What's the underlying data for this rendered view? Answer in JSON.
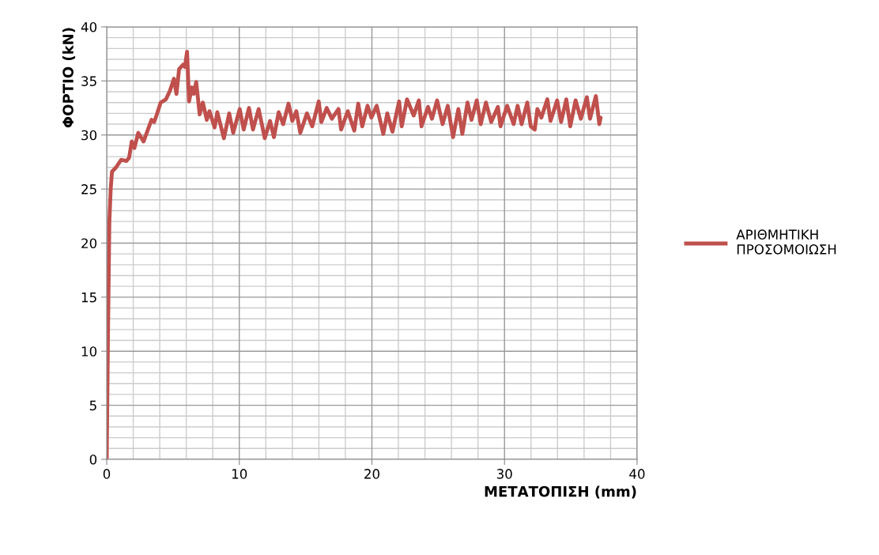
{
  "chart_data": {
    "type": "line",
    "xlabel": "ΜΕΤΑΤΟΠΙΣΗ (mm)",
    "ylabel": "ΦΟΡΤΙΟ (kN)",
    "xlim": [
      0,
      40
    ],
    "ylim": [
      0,
      40
    ],
    "xticks": [
      0,
      10,
      20,
      30,
      40
    ],
    "yticks": [
      0,
      5,
      10,
      15,
      20,
      25,
      30,
      35,
      40
    ],
    "grid": true,
    "legend": "right",
    "marker": "none",
    "line_style": "solid",
    "series": [
      {
        "name": "ΑΡΙΘΜΗΤΙΚΗ ΠΡΟΣΟΜΟΙΩΣΗ",
        "color": "#c0504d",
        "x": [
          0,
          0.1,
          0.2,
          0.3,
          0.4,
          0.7,
          1.09,
          1.49,
          1.69,
          1.89,
          2.09,
          2.38,
          2.78,
          3.38,
          3.58,
          3.78,
          4.07,
          4.47,
          4.77,
          5.07,
          5.26,
          5.46,
          5.76,
          5.9,
          6.06,
          6.21,
          6.42,
          6.56,
          6.75,
          7.01,
          7.25,
          7.55,
          7.75,
          8.14,
          8.34,
          8.84,
          9.24,
          9.54,
          10.03,
          10.33,
          10.73,
          11.03,
          11.46,
          11.92,
          12.32,
          12.61,
          12.97,
          13.31,
          13.71,
          14.0,
          14.3,
          14.6,
          15.1,
          15.5,
          15.99,
          16.19,
          16.59,
          16.98,
          17.48,
          17.68,
          18.18,
          18.67,
          18.97,
          19.27,
          19.67,
          19.96,
          20.36,
          20.86,
          21.16,
          21.55,
          22.05,
          22.25,
          22.65,
          23.15,
          23.54,
          23.74,
          24.23,
          24.53,
          24.92,
          25.33,
          25.72,
          26.12,
          26.52,
          26.82,
          27.21,
          27.51,
          27.91,
          28.21,
          28.6,
          29.0,
          29.5,
          29.7,
          30.2,
          30.69,
          30.99,
          31.29,
          31.72,
          31.98,
          32.28,
          32.48,
          32.78,
          33.23,
          33.47,
          33.97,
          34.27,
          34.66,
          34.96,
          35.36,
          35.76,
          36.21,
          36.45,
          36.89,
          37.15,
          37.25
        ],
        "values": [
          0,
          12,
          22,
          25,
          26.6,
          27.0,
          27.7,
          27.6,
          27.9,
          29.4,
          28.8,
          30.2,
          29.4,
          31.4,
          31.2,
          31.9,
          33.0,
          33.3,
          34.1,
          35.2,
          33.8,
          36.1,
          36.5,
          36.3,
          37.7,
          33.1,
          34.4,
          33.8,
          34.9,
          31.9,
          33.0,
          31.4,
          32.2,
          30.7,
          32.1,
          29.7,
          32.0,
          30.2,
          32.4,
          30.5,
          32.5,
          30.5,
          32.4,
          29.7,
          31.3,
          29.8,
          32.1,
          31.0,
          32.9,
          31.3,
          32.2,
          30.2,
          32.0,
          30.8,
          33.1,
          31.2,
          32.5,
          31.5,
          32.4,
          30.5,
          32.2,
          30.4,
          32.9,
          30.8,
          32.7,
          31.6,
          32.7,
          30.1,
          32.0,
          30.3,
          33.1,
          30.8,
          33.3,
          31.8,
          33.2,
          30.8,
          32.6,
          31.5,
          33.2,
          31.0,
          32.7,
          29.8,
          32.4,
          30.1,
          33.0,
          31.4,
          33.2,
          31.0,
          33.0,
          31.2,
          32.6,
          30.8,
          32.7,
          31.0,
          32.7,
          31.0,
          33.0,
          30.8,
          30.5,
          32.4,
          31.6,
          33.3,
          31.3,
          33.2,
          31.2,
          33.3,
          30.8,
          33.2,
          31.5,
          33.5,
          31.5,
          33.6,
          31.0,
          31.6
        ]
      }
    ]
  }
}
